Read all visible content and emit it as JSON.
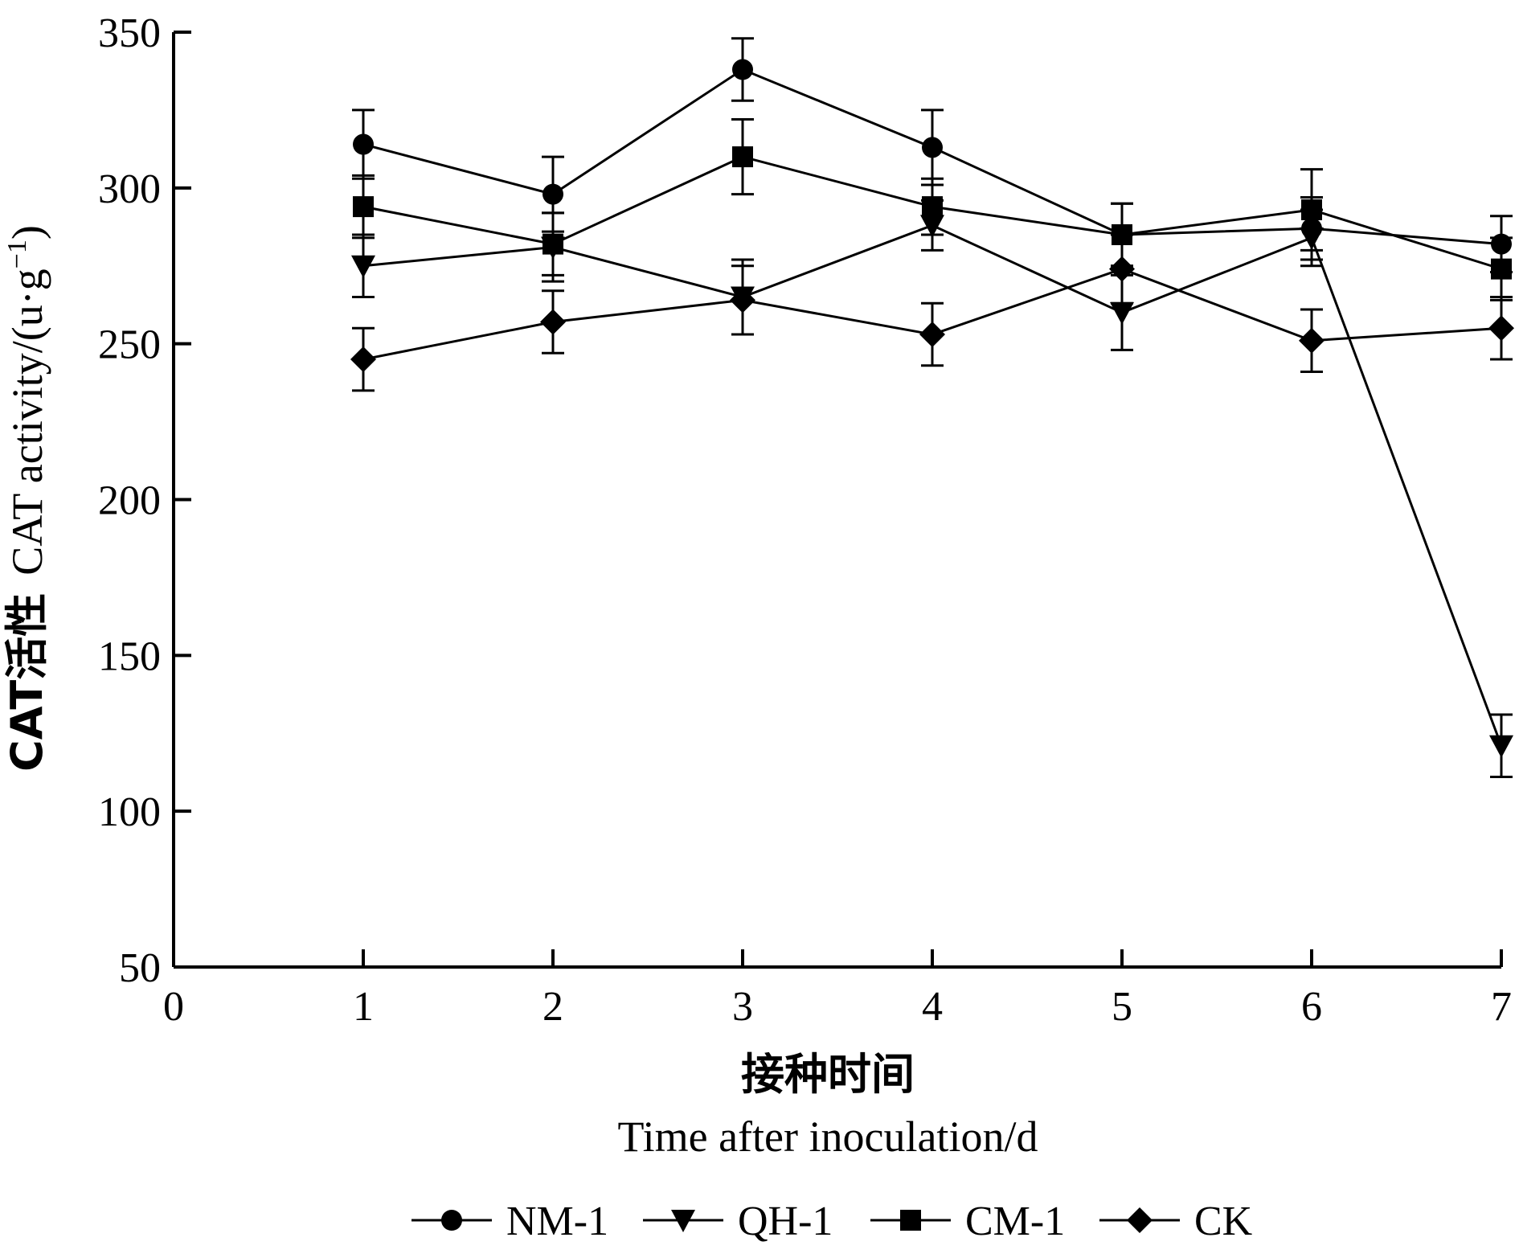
{
  "chart_data": {
    "type": "line",
    "title": "",
    "xlabel_cn": "接种时间",
    "xlabel_en": "Time after inoculation/d",
    "ylabel_cn": "CAT活性",
    "ylabel_en_main": "CAT activity/(u·g",
    "ylabel_en_sup": "−1",
    "ylabel_en_close": ")",
    "xlim": [
      0,
      7
    ],
    "ylim": [
      50,
      350
    ],
    "xticks": [
      "0",
      "1",
      "2",
      "3",
      "4",
      "5",
      "6",
      "7"
    ],
    "yticks": [
      "50",
      "100",
      "150",
      "200",
      "250",
      "300",
      "350"
    ],
    "x": [
      1,
      2,
      3,
      4,
      5,
      6,
      7
    ],
    "legend_position": "bottom",
    "grid": false,
    "series": [
      {
        "name": "NM-1",
        "marker": "circle",
        "values": [
          314,
          298,
          338,
          313,
          285,
          287,
          282
        ],
        "errors": [
          11,
          12,
          10,
          12,
          10,
          10,
          9
        ]
      },
      {
        "name": "QH-1",
        "marker": "triangle-down",
        "values": [
          275,
          281,
          265,
          288,
          260,
          284,
          121
        ],
        "errors": [
          10,
          11,
          12,
          8,
          12,
          9,
          10
        ]
      },
      {
        "name": "CM-1",
        "marker": "square",
        "values": [
          294,
          282,
          310,
          294,
          285,
          293,
          274
        ],
        "errors": [
          10,
          10,
          12,
          9,
          10,
          13,
          10
        ]
      },
      {
        "name": "CK",
        "marker": "diamond",
        "values": [
          245,
          257,
          264,
          253,
          274,
          251,
          255
        ],
        "errors": [
          10,
          10,
          11,
          10,
          11,
          10,
          10
        ]
      }
    ]
  }
}
